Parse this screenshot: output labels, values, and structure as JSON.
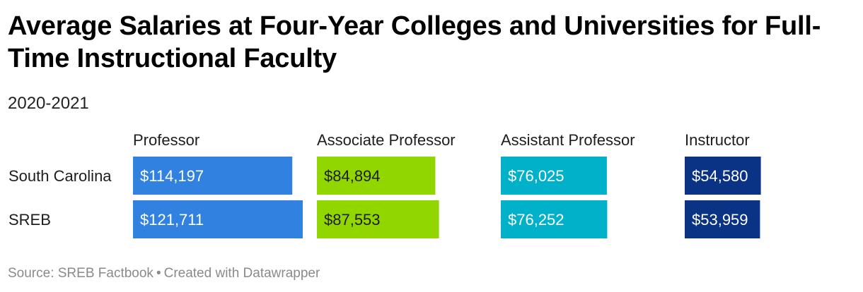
{
  "title": "Average Salaries at Four-Year Colleges and Universities for Full-Time Instructional Faculty",
  "subtitle": "2020-2021",
  "footer": {
    "source": "Source: SREB Factbook",
    "separator": "•",
    "credit": "Created with Datawrapper"
  },
  "chart_data": {
    "type": "bar",
    "title": "Average Salaries at Four-Year Colleges and Universities for Full-Time Instructional Faculty",
    "subtitle": "2020-2021",
    "categories": [
      "South Carolina",
      "SREB"
    ],
    "series": [
      {
        "name": "Professor",
        "values": [
          114197,
          121711
        ],
        "labels": [
          "$114,197",
          "$121,711"
        ],
        "color": "#3182e0"
      },
      {
        "name": "Associate Professor",
        "values": [
          84894,
          87553
        ],
        "labels": [
          "$84,894",
          "$87,553"
        ],
        "color": "#92d600"
      },
      {
        "name": "Assistant Professor",
        "values": [
          76025,
          76252
        ],
        "labels": [
          "$76,025",
          "$76,252"
        ],
        "color": "#00b1c9"
      },
      {
        "name": "Instructor",
        "values": [
          54580,
          53959
        ],
        "labels": [
          "$54,580",
          "$53,959"
        ],
        "color": "#0a3285"
      }
    ],
    "legend": "column headers"
  }
}
